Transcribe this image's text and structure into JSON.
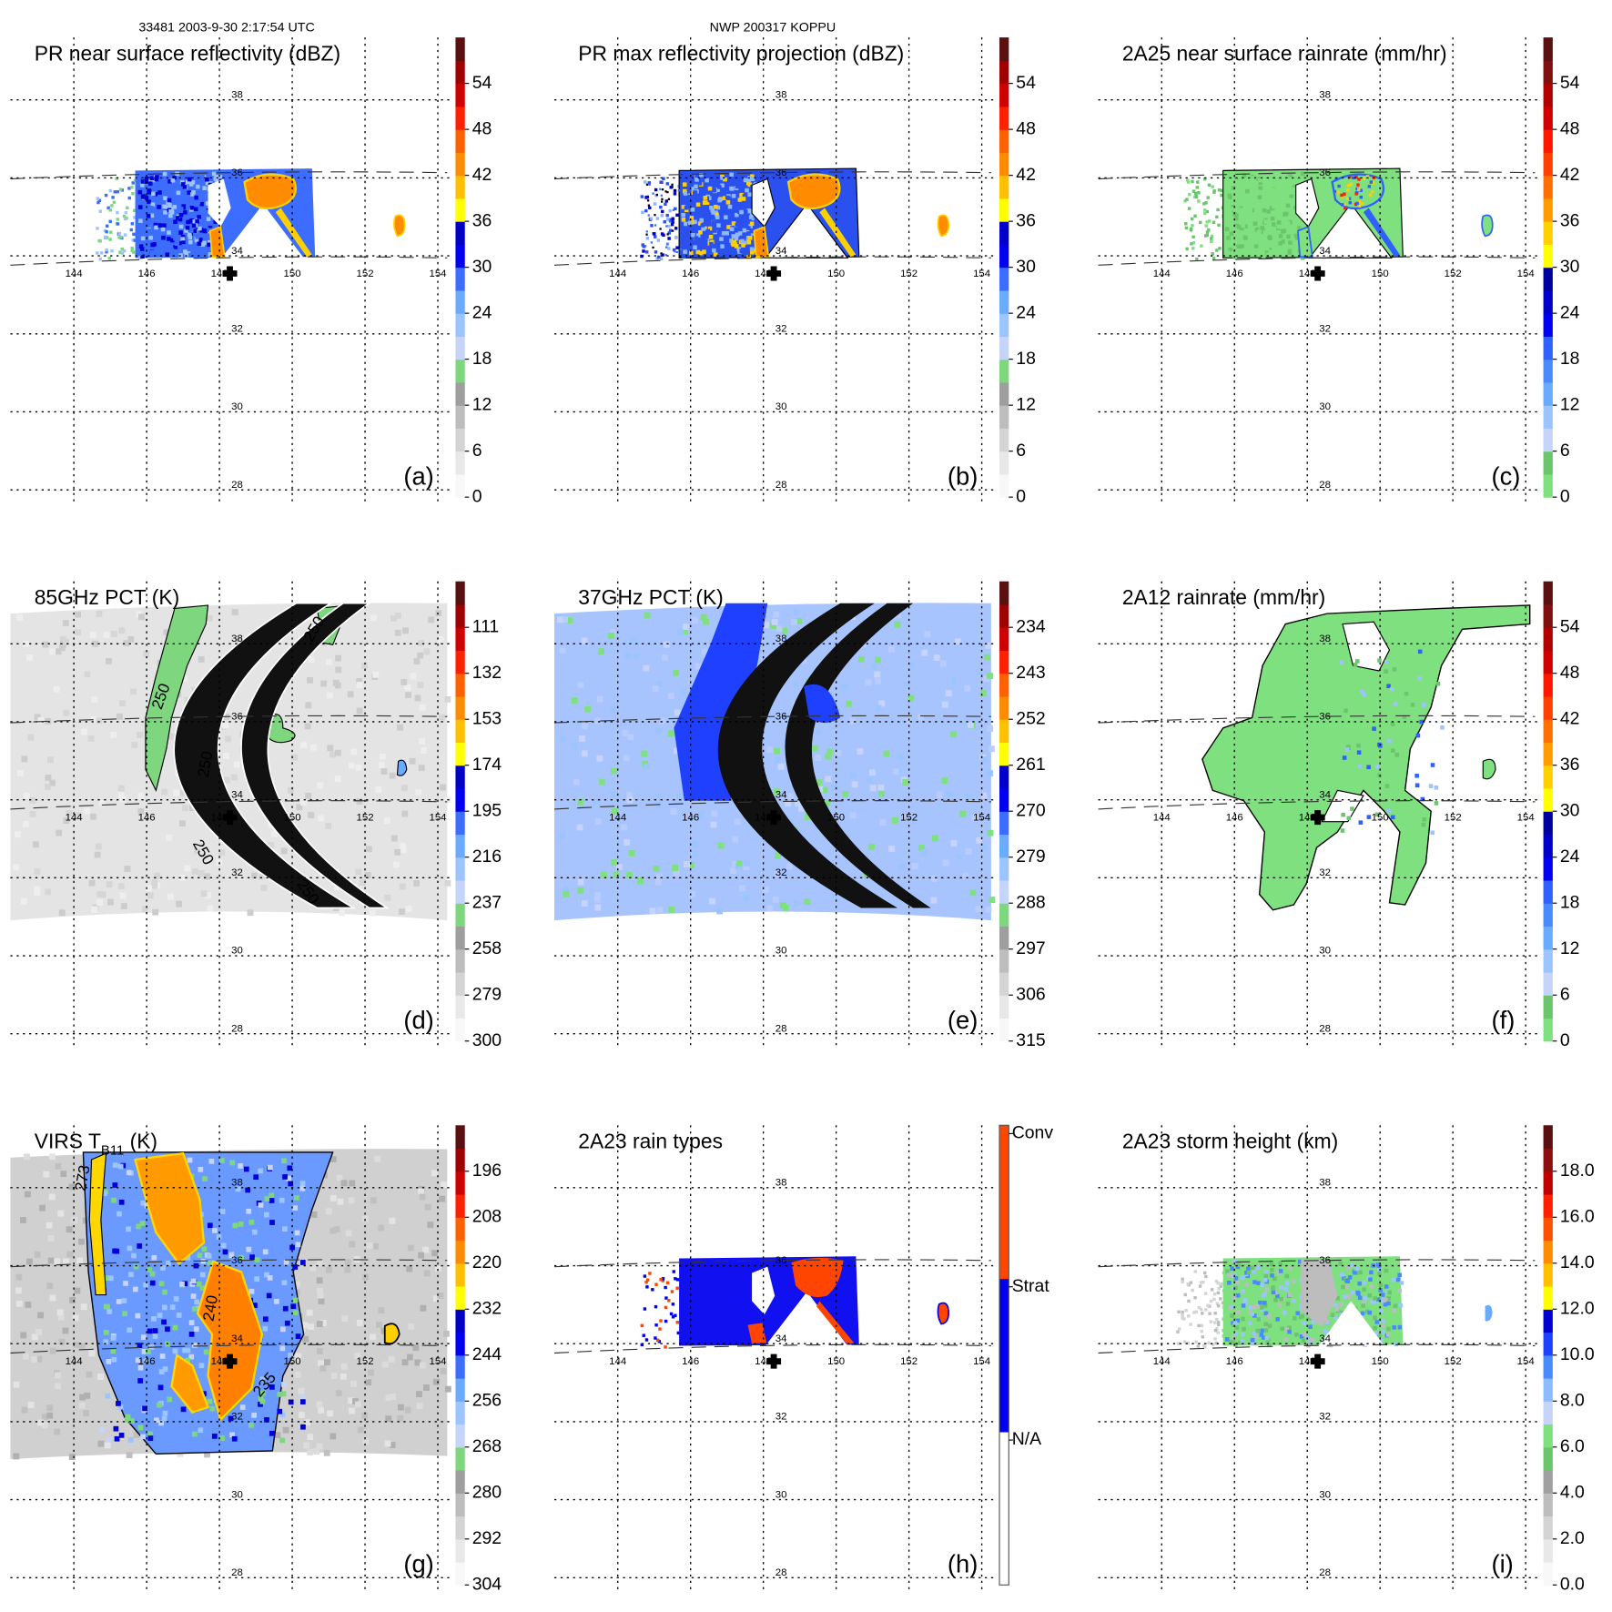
{
  "header": {
    "left": "33481 2003-9-30 2:17:54 UTC",
    "center": "NWP 200317 KOPPU"
  },
  "chart_data": [
    {
      "type": "heatmap",
      "panel": "(a)",
      "title": "PR near surface reflectivity (dBZ)",
      "colorbar_ticks": [
        "54",
        "48",
        "42",
        "36",
        "30",
        "24",
        "18",
        "12",
        "6",
        "0"
      ],
      "colorbar_range": [
        0,
        60
      ],
      "colorbar_colors": [
        "#f8f8f8",
        "#e8e8e8",
        "#d4d4d4",
        "#bdbdbd",
        "#9e9e9e",
        "#7ed67e",
        "#c6d4fa",
        "#9cc4ff",
        "#6aaaff",
        "#3d6dff",
        "#0000f0",
        "#0000c8",
        "#ffff00",
        "#ffc000",
        "#ff8c00",
        "#ff6000",
        "#ff2000",
        "#d00000",
        "#a00000",
        "#5a1010"
      ],
      "lon_ticks": [
        "144",
        "146",
        "148",
        "150",
        "152",
        "154"
      ],
      "lat_ticks": [
        "38",
        "36",
        "34",
        "32",
        "30",
        "28"
      ]
    },
    {
      "type": "heatmap",
      "panel": "(b)",
      "title": "PR max reflectivity projection (dBZ)",
      "colorbar_ticks": [
        "54",
        "48",
        "42",
        "36",
        "30",
        "24",
        "18",
        "12",
        "6",
        "0"
      ],
      "colorbar_range": [
        0,
        60
      ],
      "colorbar_colors": [
        "#f8f8f8",
        "#e8e8e8",
        "#d4d4d4",
        "#bdbdbd",
        "#9e9e9e",
        "#7ed67e",
        "#c6d4fa",
        "#9cc4ff",
        "#6aaaff",
        "#3d6dff",
        "#0000f0",
        "#0000c8",
        "#ffff00",
        "#ffc000",
        "#ff8c00",
        "#ff6000",
        "#ff2000",
        "#d00000",
        "#a00000",
        "#5a1010"
      ],
      "lon_ticks": [
        "144",
        "146",
        "148",
        "150",
        "152",
        "154"
      ],
      "lat_ticks": [
        "38",
        "36",
        "34",
        "32",
        "30",
        "28"
      ]
    },
    {
      "type": "heatmap",
      "panel": "(c)",
      "title": "2A25 near surface rainrate (mm/hr)",
      "colorbar_ticks": [
        "54",
        "48",
        "42",
        "36",
        "30",
        "24",
        "18",
        "12",
        "6",
        "0"
      ],
      "colorbar_range": [
        0,
        60
      ],
      "colorbar_colors": [
        "#7fe07f",
        "#6cc56c",
        "#c6d4fa",
        "#9cc4ff",
        "#6aaaff",
        "#4a8aff",
        "#3060ff",
        "#0000f0",
        "#0000c8",
        "#0000a0",
        "#ffff00",
        "#ffd000",
        "#ff9c00",
        "#ff7000",
        "#ff4000",
        "#ff1800",
        "#d00000",
        "#b00000",
        "#801010",
        "#5a1010"
      ],
      "lon_ticks": [
        "144",
        "146",
        "148",
        "150",
        "152",
        "154"
      ],
      "lat_ticks": [
        "38",
        "36",
        "34",
        "32",
        "30",
        "28"
      ]
    },
    {
      "type": "heatmap",
      "panel": "(d)",
      "title": "85GHz PCT (K)",
      "colorbar_ticks": [
        "111",
        "132",
        "153",
        "174",
        "195",
        "216",
        "237",
        "258",
        "279",
        "300"
      ],
      "colorbar_range": [
        300,
        90
      ],
      "colorbar_colors": [
        "#f8f8f8",
        "#e8e8e8",
        "#d4d4d4",
        "#bdbdbd",
        "#9e9e9e",
        "#7ed67e",
        "#c6d4fa",
        "#9cc4ff",
        "#6aaaff",
        "#3d6dff",
        "#0000f0",
        "#0000c8",
        "#ffff00",
        "#ffc000",
        "#ff8c00",
        "#ff6000",
        "#ff2000",
        "#d00000",
        "#a00000",
        "#5a1010"
      ],
      "contour_labels": [
        "250",
        "250",
        "250",
        "250",
        "250"
      ],
      "lon_ticks": [
        "144",
        "146",
        "148",
        "150",
        "152",
        "154"
      ],
      "lat_ticks": [
        "38",
        "36",
        "34",
        "32",
        "30",
        "28"
      ]
    },
    {
      "type": "heatmap",
      "panel": "(e)",
      "title": "37GHz PCT (K)",
      "colorbar_ticks": [
        "234",
        "243",
        "252",
        "261",
        "270",
        "279",
        "288",
        "297",
        "306",
        "315"
      ],
      "colorbar_range": [
        315,
        225
      ],
      "colorbar_colors": [
        "#f8f8f8",
        "#e8e8e8",
        "#d4d4d4",
        "#bdbdbd",
        "#9e9e9e",
        "#7ed67e",
        "#c6d4fa",
        "#9cc4ff",
        "#6aaaff",
        "#3d6dff",
        "#0000f0",
        "#0000c8",
        "#ffff00",
        "#ffc000",
        "#ff8c00",
        "#ff6000",
        "#ff2000",
        "#d00000",
        "#a00000",
        "#5a1010"
      ],
      "lon_ticks": [
        "144",
        "146",
        "148",
        "150",
        "152",
        "154"
      ],
      "lat_ticks": [
        "38",
        "36",
        "34",
        "32",
        "30",
        "28"
      ]
    },
    {
      "type": "heatmap",
      "panel": "(f)",
      "title": "2A12 rainrate (mm/hr)",
      "colorbar_ticks": [
        "54",
        "48",
        "42",
        "36",
        "30",
        "24",
        "18",
        "12",
        "6",
        "0"
      ],
      "colorbar_range": [
        0,
        60
      ],
      "colorbar_colors": [
        "#7fe07f",
        "#6cc56c",
        "#c6d4fa",
        "#9cc4ff",
        "#6aaaff",
        "#4a8aff",
        "#3060ff",
        "#0000f0",
        "#0000c8",
        "#0000a0",
        "#ffff00",
        "#ffd000",
        "#ff9c00",
        "#ff7000",
        "#ff4000",
        "#ff1800",
        "#d00000",
        "#b00000",
        "#801010",
        "#5a1010"
      ],
      "lon_ticks": [
        "144",
        "146",
        "148",
        "150",
        "152",
        "154"
      ],
      "lat_ticks": [
        "38",
        "36",
        "34",
        "32",
        "30",
        "28"
      ]
    },
    {
      "type": "heatmap",
      "panel": "(g)",
      "title": "VIRS T",
      "title_sub": "B11",
      "title_suffix": " (K)",
      "colorbar_ticks": [
        "196",
        "208",
        "220",
        "232",
        "244",
        "256",
        "268",
        "280",
        "292",
        "304"
      ],
      "colorbar_range": [
        304,
        184
      ],
      "colorbar_colors": [
        "#f8f8f8",
        "#e8e8e8",
        "#d4d4d4",
        "#bdbdbd",
        "#9e9e9e",
        "#7ed67e",
        "#c6d4fa",
        "#9cc4ff",
        "#6aaaff",
        "#3d6dff",
        "#0000f0",
        "#0000c8",
        "#ffff00",
        "#ffc000",
        "#ff8c00",
        "#ff6000",
        "#ff2000",
        "#d00000",
        "#a00000",
        "#5a1010"
      ],
      "contour_labels": [
        "273",
        "240",
        "235"
      ],
      "lon_ticks": [
        "144",
        "146",
        "148",
        "150",
        "152",
        "154"
      ],
      "lat_ticks": [
        "38",
        "36",
        "34",
        "32",
        "30",
        "28"
      ]
    },
    {
      "type": "heatmap",
      "panel": "(h)",
      "title": "2A23 rain types",
      "colorbar_ticks": [
        "Conv",
        "Strat",
        "N/A"
      ],
      "colorbar_colors": [
        "#ffffff",
        "#0000f0",
        "#ff4500"
      ],
      "lon_ticks": [
        "144",
        "146",
        "148",
        "150",
        "152",
        "154"
      ],
      "lat_ticks": [
        "38",
        "36",
        "34",
        "32",
        "30",
        "28"
      ]
    },
    {
      "type": "heatmap",
      "panel": "(i)",
      "title": "2A23 storm height (km)",
      "colorbar_ticks": [
        "18.0",
        "16.0",
        "14.0",
        "12.0",
        "10.0",
        "8.0",
        "6.0",
        "4.0",
        "2.0",
        "0.0"
      ],
      "colorbar_range": [
        0,
        20
      ],
      "colorbar_colors": [
        "#f8f8f8",
        "#e8e8e8",
        "#d4d4d4",
        "#bdbdbd",
        "#a0a0a0",
        "#6cc56c",
        "#7fe07f",
        "#c6d4fa",
        "#8cbcff",
        "#4a8aff",
        "#2040ff",
        "#0000d0",
        "#ffff00",
        "#ffc000",
        "#ff8c00",
        "#ff5000",
        "#ff2000",
        "#c00000",
        "#8a1010",
        "#5a1010"
      ],
      "lon_ticks": [
        "144",
        "146",
        "148",
        "150",
        "152",
        "154"
      ],
      "lat_ticks": [
        "38",
        "36",
        "34",
        "32",
        "30",
        "28"
      ]
    }
  ]
}
